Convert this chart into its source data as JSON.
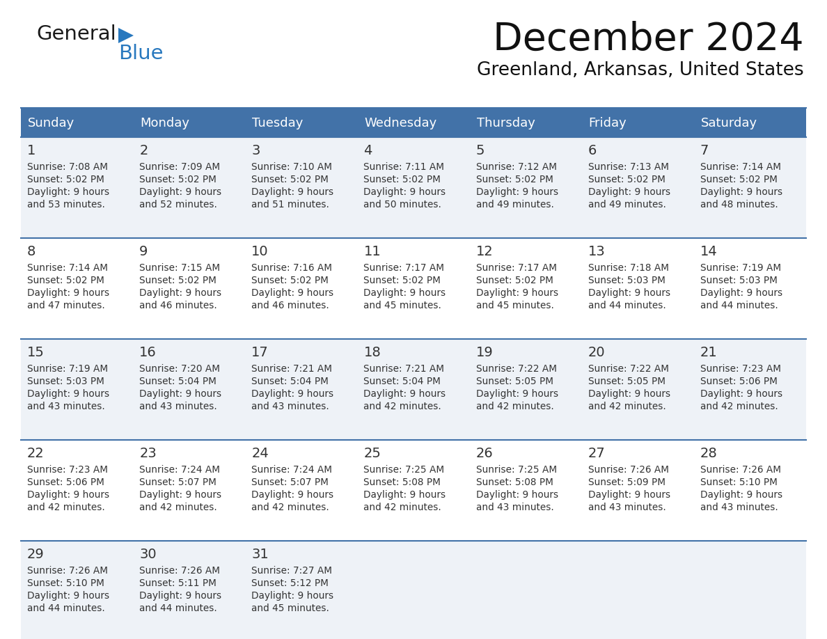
{
  "title": "December 2024",
  "subtitle": "Greenland, Arkansas, United States",
  "days_of_week": [
    "Sunday",
    "Monday",
    "Tuesday",
    "Wednesday",
    "Thursday",
    "Friday",
    "Saturday"
  ],
  "header_bg": "#4272a8",
  "header_text": "#ffffff",
  "row_bg_odd": "#eef2f7",
  "row_bg_even": "#ffffff",
  "border_color": "#4272a8",
  "text_color": "#333333",
  "calendar_data": [
    [
      {
        "day": 1,
        "sunrise": "7:08 AM",
        "sunset": "5:02 PM",
        "daylight_hours": 9,
        "daylight_minutes": 53
      },
      {
        "day": 2,
        "sunrise": "7:09 AM",
        "sunset": "5:02 PM",
        "daylight_hours": 9,
        "daylight_minutes": 52
      },
      {
        "day": 3,
        "sunrise": "7:10 AM",
        "sunset": "5:02 PM",
        "daylight_hours": 9,
        "daylight_minutes": 51
      },
      {
        "day": 4,
        "sunrise": "7:11 AM",
        "sunset": "5:02 PM",
        "daylight_hours": 9,
        "daylight_minutes": 50
      },
      {
        "day": 5,
        "sunrise": "7:12 AM",
        "sunset": "5:02 PM",
        "daylight_hours": 9,
        "daylight_minutes": 49
      },
      {
        "day": 6,
        "sunrise": "7:13 AM",
        "sunset": "5:02 PM",
        "daylight_hours": 9,
        "daylight_minutes": 49
      },
      {
        "day": 7,
        "sunrise": "7:14 AM",
        "sunset": "5:02 PM",
        "daylight_hours": 9,
        "daylight_minutes": 48
      }
    ],
    [
      {
        "day": 8,
        "sunrise": "7:14 AM",
        "sunset": "5:02 PM",
        "daylight_hours": 9,
        "daylight_minutes": 47
      },
      {
        "day": 9,
        "sunrise": "7:15 AM",
        "sunset": "5:02 PM",
        "daylight_hours": 9,
        "daylight_minutes": 46
      },
      {
        "day": 10,
        "sunrise": "7:16 AM",
        "sunset": "5:02 PM",
        "daylight_hours": 9,
        "daylight_minutes": 46
      },
      {
        "day": 11,
        "sunrise": "7:17 AM",
        "sunset": "5:02 PM",
        "daylight_hours": 9,
        "daylight_minutes": 45
      },
      {
        "day": 12,
        "sunrise": "7:17 AM",
        "sunset": "5:02 PM",
        "daylight_hours": 9,
        "daylight_minutes": 45
      },
      {
        "day": 13,
        "sunrise": "7:18 AM",
        "sunset": "5:03 PM",
        "daylight_hours": 9,
        "daylight_minutes": 44
      },
      {
        "day": 14,
        "sunrise": "7:19 AM",
        "sunset": "5:03 PM",
        "daylight_hours": 9,
        "daylight_minutes": 44
      }
    ],
    [
      {
        "day": 15,
        "sunrise": "7:19 AM",
        "sunset": "5:03 PM",
        "daylight_hours": 9,
        "daylight_minutes": 43
      },
      {
        "day": 16,
        "sunrise": "7:20 AM",
        "sunset": "5:04 PM",
        "daylight_hours": 9,
        "daylight_minutes": 43
      },
      {
        "day": 17,
        "sunrise": "7:21 AM",
        "sunset": "5:04 PM",
        "daylight_hours": 9,
        "daylight_minutes": 43
      },
      {
        "day": 18,
        "sunrise": "7:21 AM",
        "sunset": "5:04 PM",
        "daylight_hours": 9,
        "daylight_minutes": 42
      },
      {
        "day": 19,
        "sunrise": "7:22 AM",
        "sunset": "5:05 PM",
        "daylight_hours": 9,
        "daylight_minutes": 42
      },
      {
        "day": 20,
        "sunrise": "7:22 AM",
        "sunset": "5:05 PM",
        "daylight_hours": 9,
        "daylight_minutes": 42
      },
      {
        "day": 21,
        "sunrise": "7:23 AM",
        "sunset": "5:06 PM",
        "daylight_hours": 9,
        "daylight_minutes": 42
      }
    ],
    [
      {
        "day": 22,
        "sunrise": "7:23 AM",
        "sunset": "5:06 PM",
        "daylight_hours": 9,
        "daylight_minutes": 42
      },
      {
        "day": 23,
        "sunrise": "7:24 AM",
        "sunset": "5:07 PM",
        "daylight_hours": 9,
        "daylight_minutes": 42
      },
      {
        "day": 24,
        "sunrise": "7:24 AM",
        "sunset": "5:07 PM",
        "daylight_hours": 9,
        "daylight_minutes": 42
      },
      {
        "day": 25,
        "sunrise": "7:25 AM",
        "sunset": "5:08 PM",
        "daylight_hours": 9,
        "daylight_minutes": 42
      },
      {
        "day": 26,
        "sunrise": "7:25 AM",
        "sunset": "5:08 PM",
        "daylight_hours": 9,
        "daylight_minutes": 43
      },
      {
        "day": 27,
        "sunrise": "7:26 AM",
        "sunset": "5:09 PM",
        "daylight_hours": 9,
        "daylight_minutes": 43
      },
      {
        "day": 28,
        "sunrise": "7:26 AM",
        "sunset": "5:10 PM",
        "daylight_hours": 9,
        "daylight_minutes": 43
      }
    ],
    [
      {
        "day": 29,
        "sunrise": "7:26 AM",
        "sunset": "5:10 PM",
        "daylight_hours": 9,
        "daylight_minutes": 44
      },
      {
        "day": 30,
        "sunrise": "7:26 AM",
        "sunset": "5:11 PM",
        "daylight_hours": 9,
        "daylight_minutes": 44
      },
      {
        "day": 31,
        "sunrise": "7:27 AM",
        "sunset": "5:12 PM",
        "daylight_hours": 9,
        "daylight_minutes": 45
      },
      null,
      null,
      null,
      null
    ]
  ],
  "logo_general_color": "#1a1a1a",
  "logo_blue_color": "#2878be",
  "logo_triangle_color": "#2878be",
  "fig_width": 11.88,
  "fig_height": 9.18,
  "dpi": 100
}
